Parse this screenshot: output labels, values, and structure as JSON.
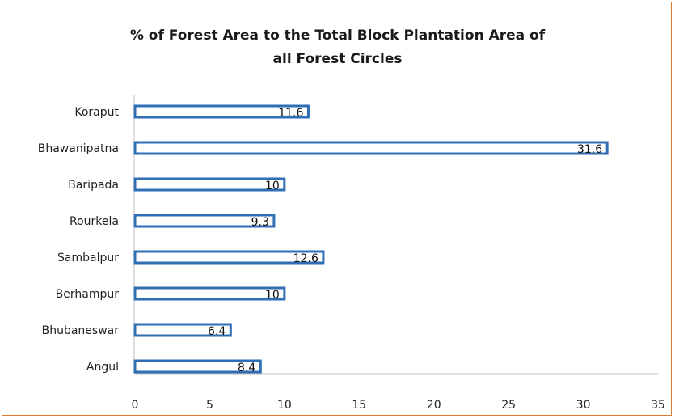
{
  "chart_data": {
    "type": "bar",
    "orientation": "horizontal",
    "title_line1": "% of Forest Area to the Total Block Plantation Area of",
    "title_line2": "all Forest Circles",
    "categories": [
      "Koraput",
      "Bhawanipatna",
      "Baripada",
      "Rourkela",
      "Sambalpur",
      "Berhampur",
      "Bhubaneswar",
      "Angul"
    ],
    "values": [
      11.6,
      31.6,
      10,
      9.3,
      12.6,
      10,
      6.4,
      8.4
    ],
    "data_labels": [
      "11.6",
      "31.6",
      "10",
      "9.3",
      "12.6",
      "10",
      "6.4",
      "8.4"
    ],
    "xlim": [
      0,
      35
    ],
    "xticks": [
      "0",
      "5",
      "10",
      "15",
      "20",
      "25",
      "30",
      "35"
    ],
    "grid": false,
    "legend": "none",
    "colors": {
      "bar_border": "#2f6db5",
      "bar_fill": "#ffffff",
      "frame": "#e07a2e",
      "axis": "#bfbfbf"
    }
  }
}
